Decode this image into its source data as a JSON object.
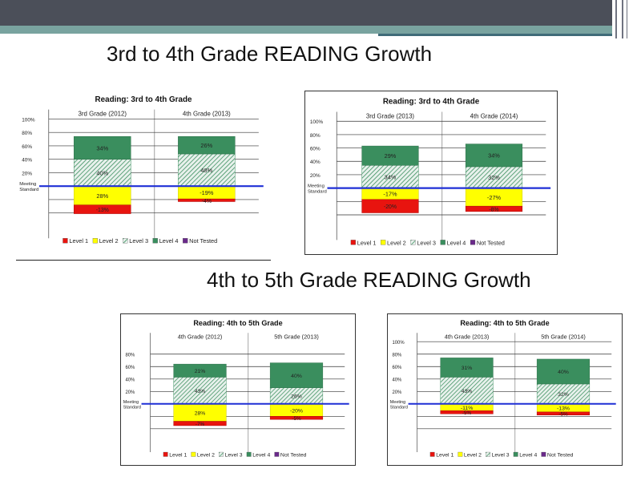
{
  "slide": {
    "heading_top": "3rd to 4th Grade READING Growth",
    "heading_bottom": "4th to 5th Grade READING Growth",
    "meeting_standard_label": [
      "Meeting",
      "Standard"
    ],
    "legend": [
      {
        "name": "Level 1",
        "color": "#e8140f"
      },
      {
        "name": "Level 2",
        "color": "#ffff00"
      },
      {
        "name": "Level 3",
        "color": "#cfe3d8"
      },
      {
        "name": "Level 4",
        "color": "#3a8e5e"
      },
      {
        "name": "Not Tested",
        "color": "#6a2a8a"
      }
    ],
    "colors": {
      "level1": "#e8140f",
      "level2": "#ffff00",
      "level3": "#cfe3d8",
      "level4": "#3a8e5e",
      "meeting_line": "#1f2fd6",
      "header_bar": "#4b4f59",
      "teal_bar": "#79a39f"
    }
  },
  "chart_data": [
    {
      "type": "bar",
      "title": "Reading: 3rd to 4th Grade",
      "categories": [
        "3rd Grade (2012)",
        "4th Grade (2013)"
      ],
      "yticks": [
        "100%",
        "80%",
        "60%",
        "40%",
        "20%"
      ],
      "series": [
        {
          "name": "Level 4",
          "values": [
            34,
            26
          ],
          "labels": [
            "34%",
            "26%"
          ]
        },
        {
          "name": "Level 3",
          "values": [
            40,
            48
          ],
          "labels": [
            "40%",
            "48%"
          ]
        },
        {
          "name": "Level 2",
          "values": [
            -28,
            -19
          ],
          "labels": [
            "28%",
            "-19%"
          ]
        },
        {
          "name": "Level 1",
          "values": [
            -13,
            -4
          ],
          "labels": [
            "-13%",
            "-4%"
          ]
        }
      ]
    },
    {
      "type": "bar",
      "title": "Reading: 3rd to 4th Grade",
      "categories": [
        "3rd Grade (2013)",
        "4th Grade (2014)"
      ],
      "yticks": [
        "100%",
        "80%",
        "60%",
        "40%",
        "20%"
      ],
      "series": [
        {
          "name": "Level 4",
          "values": [
            29,
            34
          ],
          "labels": [
            "29%",
            "34%"
          ]
        },
        {
          "name": "Level 3",
          "values": [
            34,
            32
          ],
          "labels": [
            "34%",
            "32%"
          ]
        },
        {
          "name": "Level 2",
          "values": [
            -17,
            -27
          ],
          "labels": [
            "-17%",
            "-27%"
          ]
        },
        {
          "name": "Level 1",
          "values": [
            -20,
            -8
          ],
          "labels": [
            "-20%",
            "-8%"
          ]
        }
      ]
    },
    {
      "type": "bar",
      "title": "Reading: 4th to 5th Grade",
      "categories": [
        "4th Grade (2012)",
        "5th Grade (2013)"
      ],
      "yticks": [
        "80%",
        "60%",
        "40%",
        "20%"
      ],
      "series": [
        {
          "name": "Level 4",
          "values": [
            21,
            40
          ],
          "labels": [
            "21%",
            "40%"
          ]
        },
        {
          "name": "Level 3",
          "values": [
            43,
            26
          ],
          "labels": [
            "43%",
            "26%"
          ]
        },
        {
          "name": "Level 2",
          "values": [
            -28,
            -20
          ],
          "labels": [
            "28%",
            "-20%"
          ]
        },
        {
          "name": "Level 1",
          "values": [
            -7,
            -5
          ],
          "labels": [
            "-7%",
            "-5%"
          ]
        }
      ]
    },
    {
      "type": "bar",
      "title": "Reading: 4th to 5th Grade",
      "categories": [
        "4th Grade (2013)",
        "5th Grade (2014)"
      ],
      "yticks": [
        "100%",
        "80%",
        "60%",
        "40%",
        "20%"
      ],
      "series": [
        {
          "name": "Level 4",
          "values": [
            31,
            40
          ],
          "labels": [
            "31%",
            "40%"
          ]
        },
        {
          "name": "Level 3",
          "values": [
            43,
            32
          ],
          "labels": [
            "43%",
            "32%"
          ]
        },
        {
          "name": "Level 2",
          "values": [
            -11,
            -13
          ],
          "labels": [
            "-11%",
            "-13%"
          ]
        },
        {
          "name": "Level 1",
          "values": [
            -5,
            -5
          ],
          "labels": [
            "-5%",
            "-5%"
          ]
        }
      ]
    }
  ]
}
